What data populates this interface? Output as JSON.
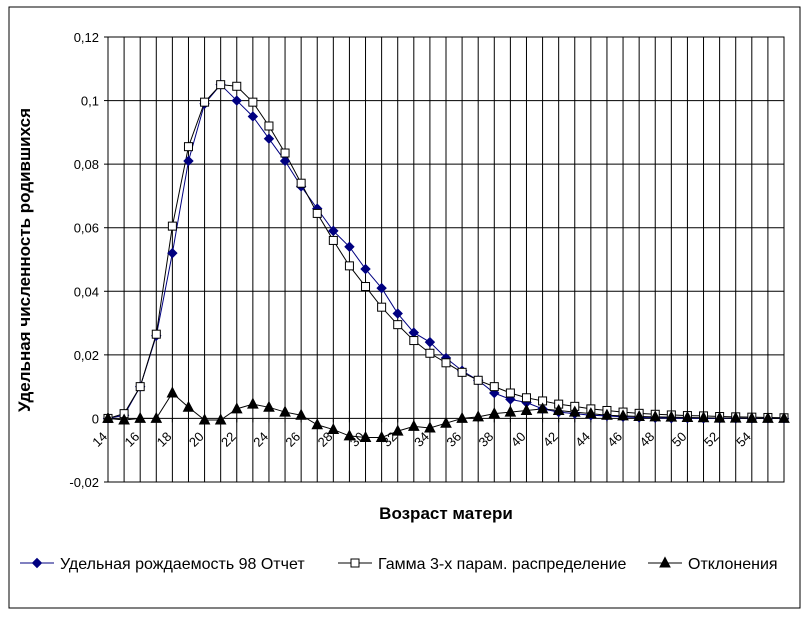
{
  "chart_data": {
    "type": "line",
    "title": "",
    "xlabel": "Возраст матери",
    "ylabel": "Удельная численность родившихся",
    "xlim": [
      14,
      56
    ],
    "ylim": [
      -0.02,
      0.12
    ],
    "grid": {
      "vertical": true,
      "horizontal": true
    },
    "legend_position": "bottom",
    "x": [
      14,
      15,
      16,
      17,
      18,
      19,
      20,
      21,
      22,
      23,
      24,
      25,
      26,
      27,
      28,
      29,
      30,
      31,
      32,
      33,
      34,
      35,
      36,
      37,
      38,
      39,
      40,
      41,
      42,
      43,
      44,
      45,
      46,
      47,
      48,
      49,
      50,
      51,
      52,
      53,
      54,
      55,
      56
    ],
    "xticks": [
      14,
      16,
      18,
      20,
      22,
      24,
      26,
      28,
      30,
      32,
      34,
      36,
      38,
      40,
      42,
      44,
      46,
      48,
      50,
      52,
      54
    ],
    "xtick_labels": [
      "14",
      "16",
      "18",
      "20",
      "22",
      "24",
      "26",
      "28",
      "30",
      "32",
      "34",
      "36",
      "38",
      "40",
      "42",
      "44",
      "46",
      "48",
      "50",
      "52",
      "54"
    ],
    "yticks": [
      -0.02,
      0,
      0.02,
      0.04,
      0.06,
      0.08,
      0.1,
      0.12
    ],
    "ytick_labels": [
      "-0,02",
      "0",
      "0,02",
      "0,04",
      "0,06",
      "0,08",
      "0,1",
      "0,12"
    ],
    "series": [
      {
        "name": "Удельная рождаемость 98 Отчет",
        "color": "#000080",
        "marker": "diamond",
        "values": [
          0,
          0.001,
          0.01,
          0.026,
          0.052,
          0.081,
          0.099,
          0.105,
          0.1,
          0.095,
          0.088,
          0.081,
          0.073,
          0.066,
          0.059,
          0.054,
          0.047,
          0.041,
          0.033,
          0.027,
          0.024,
          0.019,
          0.015,
          0.012,
          0.008,
          0.006,
          0.005,
          0.003,
          0.002,
          0.0015,
          0.001,
          0.0008,
          0.0005,
          0.0003,
          0.0002,
          0.0001,
          0.0001,
          0,
          0,
          0,
          0,
          0,
          0
        ]
      },
      {
        "name": "Гамма 3-х парам. распределение",
        "color": "#000000",
        "marker": "square",
        "values": [
          0,
          0.0015,
          0.01,
          0.0265,
          0.0605,
          0.0855,
          0.0995,
          0.105,
          0.1045,
          0.0995,
          0.092,
          0.0835,
          0.074,
          0.0645,
          0.056,
          0.048,
          0.0415,
          0.035,
          0.0295,
          0.0245,
          0.0205,
          0.0175,
          0.0145,
          0.012,
          0.01,
          0.008,
          0.0065,
          0.0055,
          0.0045,
          0.0038,
          0.003,
          0.0025,
          0.002,
          0.0016,
          0.0013,
          0.0011,
          0.0009,
          0.0008,
          0.0006,
          0.0005,
          0.0004,
          0.0003,
          0.0002
        ]
      },
      {
        "name": "Отклонения",
        "color": "#000000",
        "marker": "triangle",
        "values": [
          0,
          -0.0005,
          0,
          0,
          0.008,
          0.0035,
          -0.0005,
          -0.0005,
          0.003,
          0.0045,
          0.0035,
          0.002,
          0.001,
          -0.002,
          -0.0035,
          -0.0055,
          -0.006,
          -0.006,
          -0.004,
          -0.0025,
          -0.003,
          -0.0015,
          0,
          0.0005,
          0.0015,
          0.002,
          0.0025,
          0.003,
          0.0025,
          0.002,
          0.0015,
          0.001,
          0.0008,
          0.0006,
          0.0005,
          0.0004,
          0.0003,
          0.0002,
          0.0001,
          0.0001,
          0,
          0,
          0
        ]
      }
    ]
  }
}
